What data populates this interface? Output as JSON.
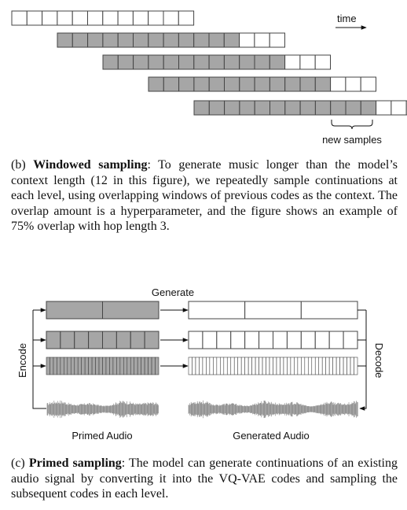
{
  "windowed": {
    "time_label": "time",
    "new_samples_label": "new samples",
    "context_length": 12,
    "hop_length": 3,
    "rows": [
      {
        "filled": 0,
        "empty": 12
      },
      {
        "filled": 12,
        "empty": 3
      },
      {
        "filled": 12,
        "empty": 3
      },
      {
        "filled": 12,
        "empty": 3
      },
      {
        "filled": 12,
        "empty": 3
      }
    ]
  },
  "caption_b": {
    "prefix": "(b) ",
    "title": "Windowed sampling",
    "text": ": To generate music longer than the model’s context length (12 in this figure), we repeatedly sample continuations at each level, using overlapping windows of previous codes as the context. The overlap amount is a hyperparameter, and the figure shows an example of 75% overlap with hop length 3."
  },
  "primed": {
    "generate_label": "Generate",
    "encode_label": "Encode",
    "decode_label": "Decode",
    "primed_audio_label": "Primed Audio",
    "generated_audio_label": "Generated Audio",
    "levels": [
      {
        "primed_cells": 2,
        "generated_cells": 3
      },
      {
        "primed_cells": 8,
        "generated_cells": 12
      },
      {
        "primed_cells": 32,
        "generated_cells": 48
      }
    ]
  },
  "caption_c": {
    "prefix": "(c) ",
    "title": "Primed sampling",
    "text": ": The model can generate continuations of an existing audio signal by converting it into the VQ-VAE codes and sampling the subsequent codes in each level."
  },
  "colors": {
    "filled": "#a6a6a6",
    "empty": "#ffffff",
    "stroke": "#444444",
    "waveform": "#7a7a7a"
  }
}
